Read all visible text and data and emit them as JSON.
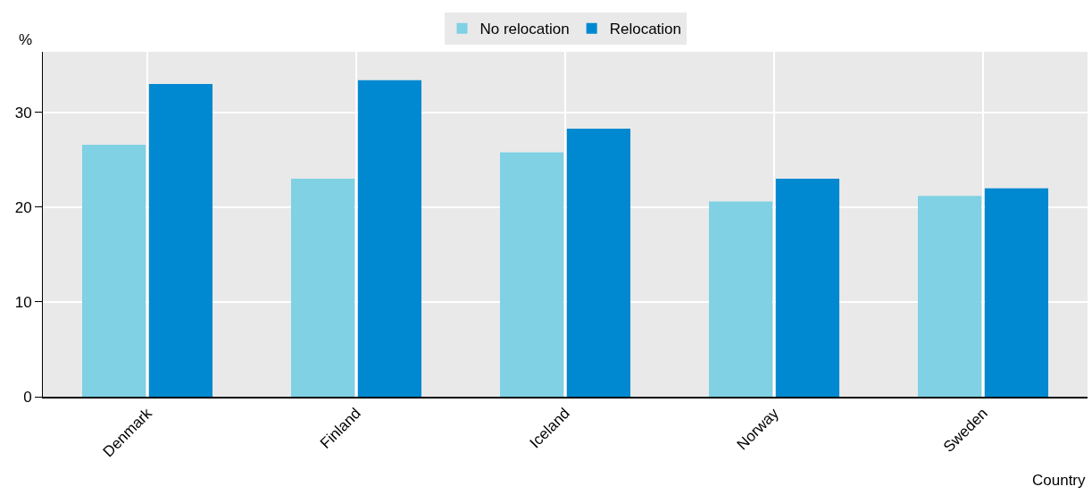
{
  "chart_data": {
    "type": "bar",
    "categories": [
      "Denmark",
      "Finland",
      "Iceland",
      "Norway",
      "Sweden"
    ],
    "series": [
      {
        "name": "No relocation",
        "color": "#7fd1e3",
        "values": [
          26.6,
          23.0,
          25.8,
          20.6,
          21.2
        ]
      },
      {
        "name": "Relocation",
        "color": "#0089d0",
        "values": [
          33.0,
          33.4,
          28.3,
          23.0,
          22.0
        ]
      }
    ],
    "ylabel": "%",
    "xlabel": "Country",
    "ylim": [
      0,
      36.4
    ],
    "yticks": [
      0,
      10,
      20,
      30
    ],
    "grid": true,
    "legend": "top"
  }
}
